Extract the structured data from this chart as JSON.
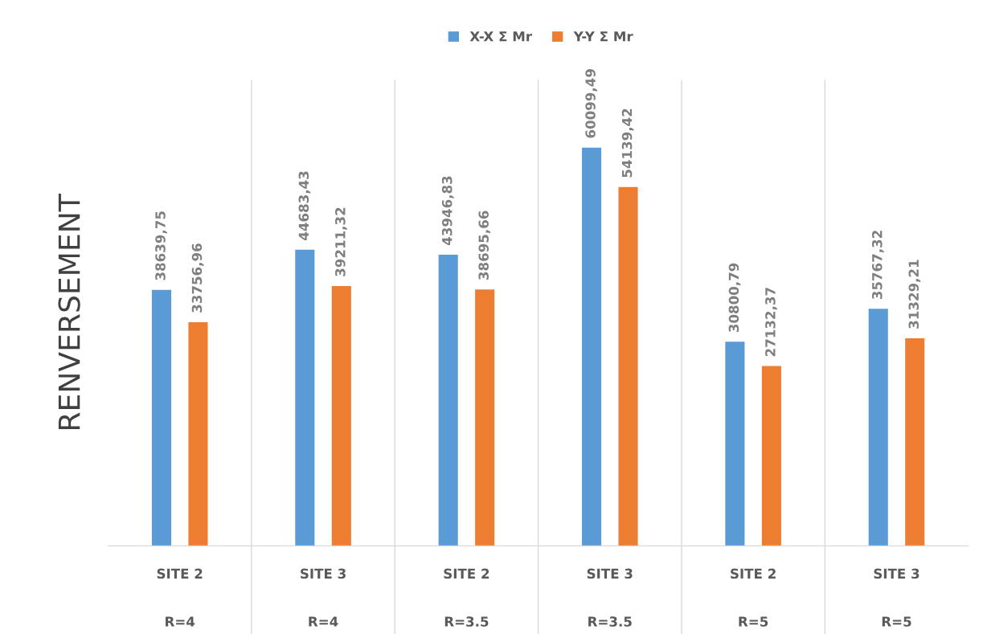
{
  "chart_data": {
    "type": "bar",
    "ylabel": "RENVERSEMENT",
    "categories": [
      "SITE 2\nR=4",
      "SITE 3\nR=4",
      "SITE 2\nR=3.5",
      "SITE 3\nR=3.5",
      "SITE 2\nR=5",
      "SITE 3\nR=5"
    ],
    "series": [
      {
        "name": "X-X Σ Mr",
        "color": "#5b9bd5",
        "values": [
          38639.75,
          44683.43,
          43946.83,
          60099.49,
          30800.79,
          35767.32
        ],
        "value_labels": [
          "38639,75",
          "44683,43",
          "43946,83",
          "60099,49",
          "30800,79",
          "35767,32"
        ]
      },
      {
        "name": "Y-Y Σ Mr",
        "color": "#ed7d31",
        "values": [
          33756.96,
          39211.32,
          38695.66,
          54139.42,
          27132.37,
          31329.21
        ],
        "value_labels": [
          "33756,96",
          "39211,32",
          "38695,66",
          "54139,42",
          "27132,37",
          "31329,21"
        ]
      }
    ],
    "grid": "x",
    "legend": "top"
  }
}
